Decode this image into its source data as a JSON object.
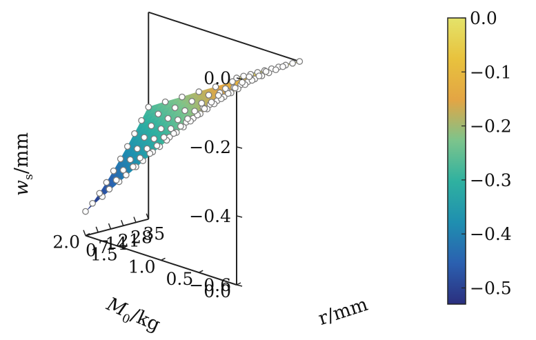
{
  "chart_data": {
    "type": "surface3d",
    "zlabel": {
      "main": "w",
      "sub": "s",
      "unit": "/mm"
    },
    "xlabel": {
      "main": "M",
      "sub": "0",
      "unit": "/kg"
    },
    "ylabel": "r/mm",
    "m_axis": {
      "range": [
        0.0,
        2.0
      ],
      "ticks": [
        "0.0",
        "0.5",
        "1.0",
        "1.5",
        "2.0"
      ]
    },
    "r_axis": {
      "range": [
        0,
        35
      ],
      "ticks": [
        "0",
        "7",
        "14",
        "21",
        "28",
        "35"
      ]
    },
    "z_axis": {
      "range": [
        -0.6,
        0.0
      ],
      "ticks": [
        "0.0",
        "−0.2",
        "−0.4",
        "−0.6"
      ]
    },
    "colorbar": {
      "range": [
        -0.53,
        0.0
      ],
      "ticks": [
        "0.0",
        "−0.1",
        "−0.2",
        "−0.3",
        "−0.4",
        "−0.5"
      ],
      "colormap": [
        "#2b2f7e",
        "#2b60b0",
        "#1f8fb0",
        "#2fb1a0",
        "#7cc48c",
        "#e3a544",
        "#e8c23d",
        "#e4e36a"
      ]
    },
    "points_note": "white circle markers on a 10 x 10 grid of (M0, r) sample points",
    "series": [
      {
        "name": "w_s",
        "M0": [
          0.0,
          0.222,
          0.444,
          0.667,
          0.889,
          1.111,
          1.333,
          1.556,
          1.778,
          2.0
        ],
        "r": [
          0.0,
          3.889,
          7.778,
          11.667,
          15.556,
          19.444,
          23.333,
          27.222,
          31.111,
          35.0
        ],
        "z_at_r0": [
          0.0,
          -0.059,
          -0.118,
          -0.176,
          -0.235,
          -0.294,
          -0.353,
          -0.412,
          -0.471,
          -0.53
        ],
        "z_at_r35": [
          0.0,
          -0.031,
          -0.061,
          -0.092,
          -0.122,
          -0.153,
          -0.183,
          -0.214,
          -0.244,
          -0.275
        ]
      }
    ]
  }
}
